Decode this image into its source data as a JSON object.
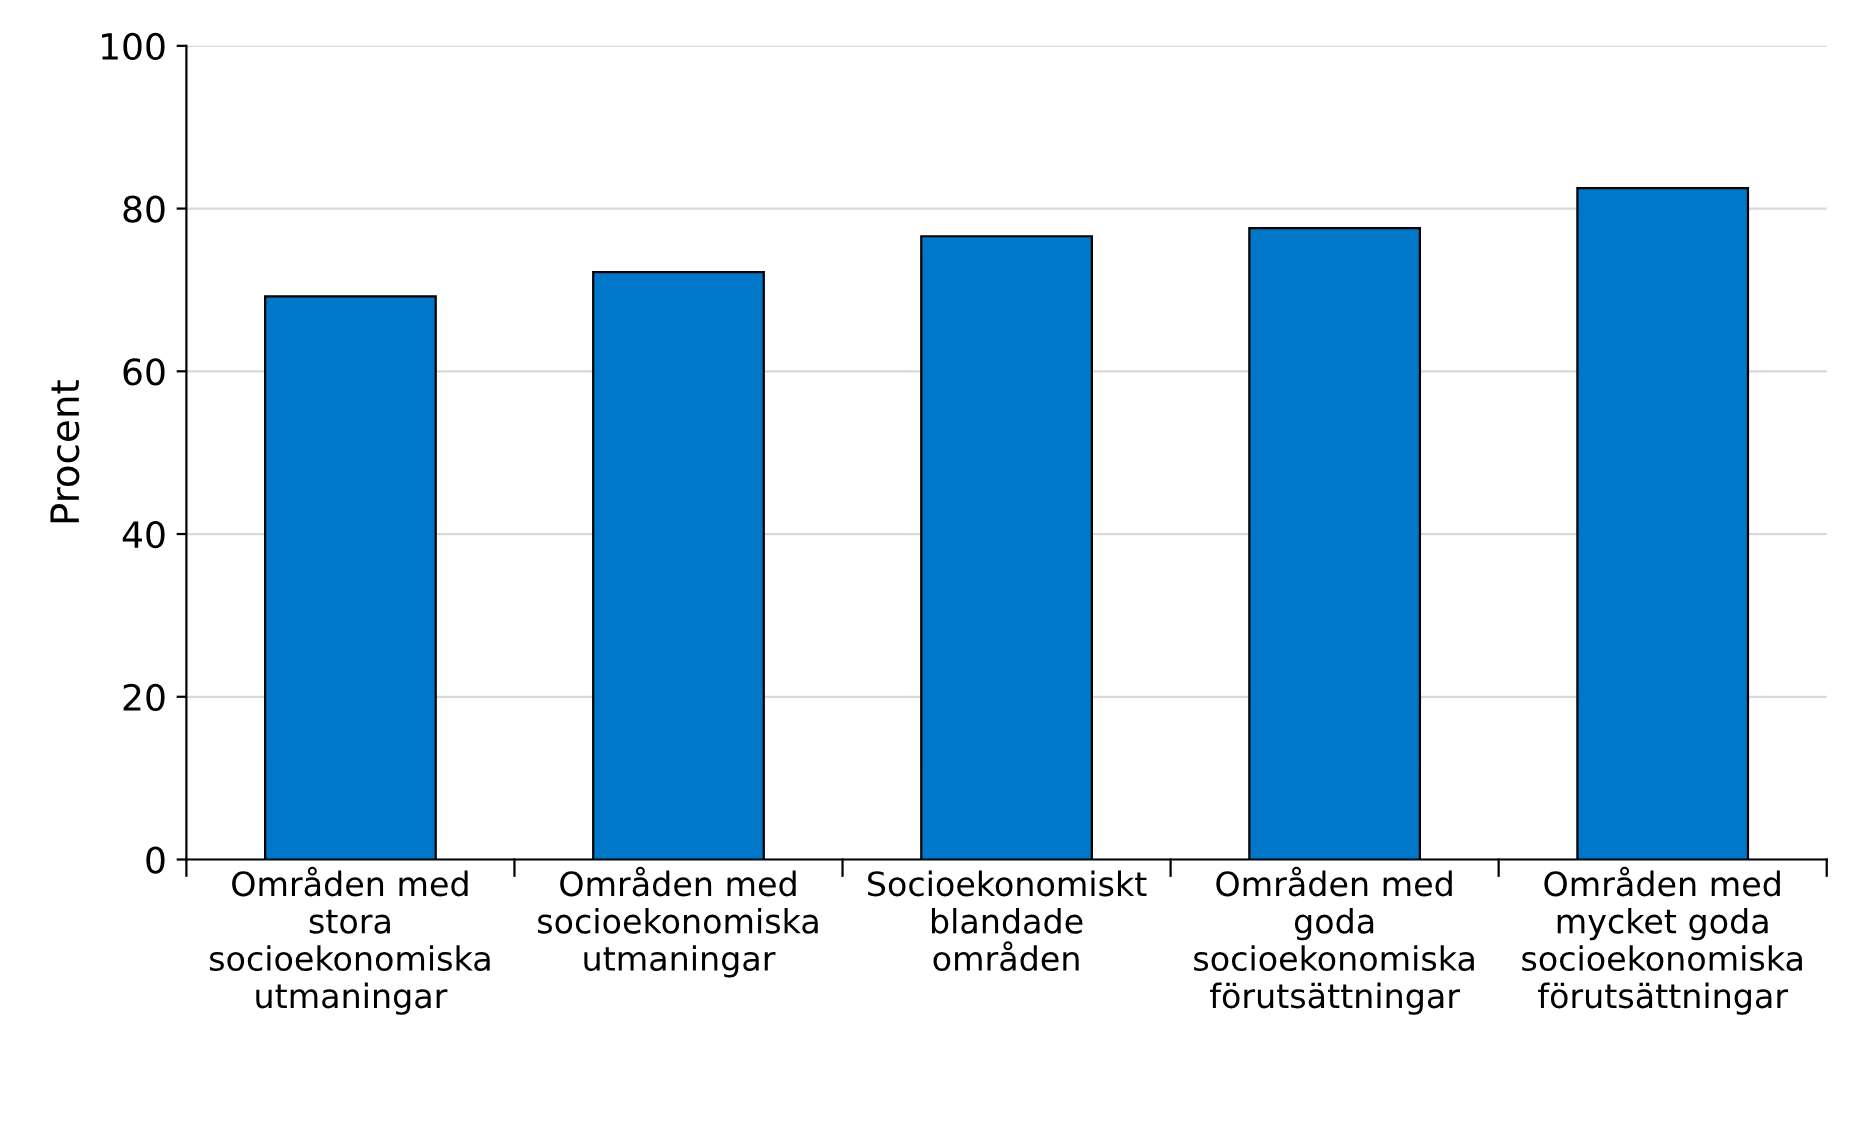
{
  "chart_data": {
    "type": "bar",
    "ylabel": "Procent",
    "categories": [
      "Områden med\nstora\nsocioekonomiska\nutmaningar",
      "Områden med\nsocioekonomiska\nutmaningar",
      "Socioekonomiskt\nblandade\nområden",
      "Områden med\ngoda\nsocioekonomiska\nförutsättningar",
      "Områden med\nmycket goda\nsocioekonomiska\nförutsättningar"
    ],
    "values": [
      69.2,
      72.2,
      76.6,
      77.6,
      82.5
    ],
    "color": "#0077c8",
    "ylim": [
      0,
      100
    ],
    "yticks": [
      0,
      20,
      40,
      60,
      80,
      100
    ],
    "grid": "y",
    "legend": false
  }
}
